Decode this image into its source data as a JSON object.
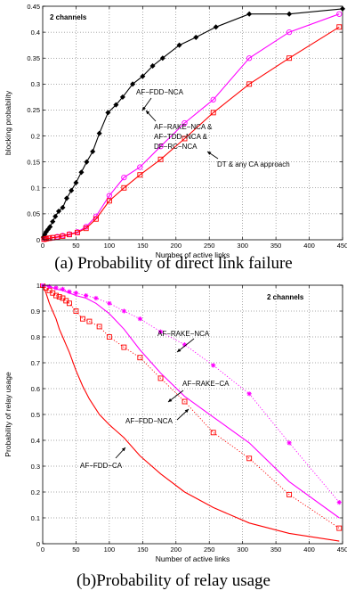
{
  "captions": {
    "a": "(a) Probability of direct link failure",
    "b": "(b)Probability of relay usage"
  },
  "colors": {
    "black": "#000000",
    "magenta": "#ff00ff",
    "red": "#ff0000"
  },
  "chart_data": [
    {
      "type": "line",
      "title": "",
      "xlabel": "Number of active links",
      "ylabel": "blocking probability",
      "xlim": [
        0,
        450
      ],
      "ylim": [
        0,
        0.45
      ],
      "xticks": [
        0,
        50,
        100,
        150,
        200,
        250,
        300,
        350,
        400,
        450
      ],
      "yticks": [
        0,
        0.05,
        0.1,
        0.15,
        0.2,
        0.25,
        0.3,
        0.35,
        0.4,
        0.45
      ],
      "grid": true,
      "annotations": [
        "2 channels",
        "AF−FDD−NCA",
        "AF−RAKE−NCA &",
        "AF−TDD−NCA &",
        "DF−RC−NCA",
        "DT & any CA approach"
      ],
      "series": [
        {
          "name": "AF−FDD−NCA",
          "color": "#000000",
          "marker": "diamond",
          "style": "solid",
          "x": [
            1,
            3,
            5,
            8,
            11,
            15,
            19,
            24,
            30,
            36,
            43,
            50,
            58,
            66,
            75,
            85,
            98,
            110,
            120,
            135,
            150,
            165,
            180,
            205,
            230,
            260,
            310,
            370,
            450
          ],
          "y": [
            0.005,
            0.01,
            0.015,
            0.02,
            0.025,
            0.035,
            0.045,
            0.055,
            0.062,
            0.08,
            0.095,
            0.11,
            0.13,
            0.15,
            0.17,
            0.205,
            0.245,
            0.26,
            0.275,
            0.3,
            0.315,
            0.335,
            0.35,
            0.375,
            0.39,
            0.41,
            0.435,
            0.435,
            0.445
          ]
        },
        {
          "name": "AF−RAKE−NCA & AF−TDD−NCA & DF−RC−NCA",
          "color": "#ff00ff",
          "marker": "circle",
          "style": "solid",
          "x": [
            2,
            5,
            10,
            15,
            22,
            30,
            40,
            52,
            65,
            80,
            100,
            122,
            146,
            177,
            213,
            256,
            310,
            370,
            445
          ],
          "y": [
            0.001,
            0.002,
            0.003,
            0.004,
            0.006,
            0.008,
            0.011,
            0.015,
            0.025,
            0.045,
            0.085,
            0.12,
            0.14,
            0.18,
            0.225,
            0.27,
            0.35,
            0.4,
            0.435
          ]
        },
        {
          "name": "DT & any CA approach",
          "color": "#ff0000",
          "marker": "square",
          "style": "solid",
          "x": [
            2,
            5,
            10,
            15,
            22,
            30,
            40,
            52,
            65,
            80,
            100,
            122,
            146,
            177,
            213,
            256,
            310,
            370,
            445
          ],
          "y": [
            0.001,
            0.002,
            0.003,
            0.004,
            0.005,
            0.007,
            0.01,
            0.014,
            0.022,
            0.04,
            0.075,
            0.1,
            0.125,
            0.155,
            0.195,
            0.245,
            0.3,
            0.35,
            0.41
          ]
        }
      ]
    },
    {
      "type": "line",
      "title": "",
      "xlabel": "Number of active links",
      "ylabel": "Probability of relay usage",
      "xlim": [
        0,
        450
      ],
      "ylim": [
        0,
        1
      ],
      "xticks": [
        0,
        50,
        100,
        150,
        200,
        250,
        300,
        350,
        400,
        450
      ],
      "yticks": [
        0,
        0.1,
        0.2,
        0.3,
        0.4,
        0.5,
        0.6,
        0.7,
        0.8,
        0.9,
        1
      ],
      "grid": true,
      "annotations": [
        "2 channels",
        "AF−RAKE−NCA",
        "AF−RAKE−CA",
        "AF−FDD−NCA",
        "AF−FDD−CA"
      ],
      "series": [
        {
          "name": "AF−FDD−CA",
          "color": "#ff0000",
          "marker": "none",
          "style": "solid",
          "x": [
            0,
            5,
            10,
            15,
            20,
            25,
            30,
            35,
            40,
            50,
            60,
            70,
            85,
            100,
            122,
            146,
            177,
            213,
            256,
            310,
            370,
            445
          ],
          "y": [
            1.0,
            0.97,
            0.93,
            0.9,
            0.87,
            0.83,
            0.8,
            0.77,
            0.74,
            0.67,
            0.61,
            0.56,
            0.5,
            0.46,
            0.41,
            0.34,
            0.27,
            0.2,
            0.14,
            0.08,
            0.04,
            0.01
          ]
        },
        {
          "name": "AF−FDD−NCA",
          "color": "#ff0000",
          "marker": "square",
          "style": "dotted",
          "x": [
            0,
            5,
            10,
            15,
            20,
            25,
            30,
            35,
            40,
            50,
            60,
            70,
            85,
            100,
            122,
            146,
            177,
            213,
            256,
            310,
            370,
            445
          ],
          "y": [
            1.0,
            0.99,
            0.98,
            0.97,
            0.96,
            0.955,
            0.95,
            0.94,
            0.93,
            0.9,
            0.87,
            0.86,
            0.84,
            0.8,
            0.76,
            0.72,
            0.64,
            0.55,
            0.43,
            0.33,
            0.19,
            0.06
          ]
        },
        {
          "name": "AF−RAKE−CA",
          "color": "#ff00ff",
          "marker": "none",
          "style": "solid",
          "x": [
            0,
            10,
            20,
            30,
            40,
            50,
            65,
            80,
            100,
            122,
            146,
            177,
            213,
            256,
            310,
            370,
            445
          ],
          "y": [
            1.0,
            0.995,
            0.985,
            0.98,
            0.97,
            0.96,
            0.95,
            0.93,
            0.89,
            0.83,
            0.75,
            0.66,
            0.57,
            0.49,
            0.39,
            0.24,
            0.1
          ]
        },
        {
          "name": "AF−RAKE−NCA",
          "color": "#ff00ff",
          "marker": "asterisk",
          "style": "dotted",
          "x": [
            0,
            10,
            20,
            30,
            40,
            50,
            65,
            80,
            100,
            122,
            146,
            177,
            213,
            256,
            310,
            370,
            445
          ],
          "y": [
            1.0,
            0.995,
            0.99,
            0.985,
            0.975,
            0.97,
            0.96,
            0.95,
            0.93,
            0.9,
            0.87,
            0.82,
            0.77,
            0.69,
            0.58,
            0.39,
            0.16
          ]
        }
      ]
    }
  ]
}
